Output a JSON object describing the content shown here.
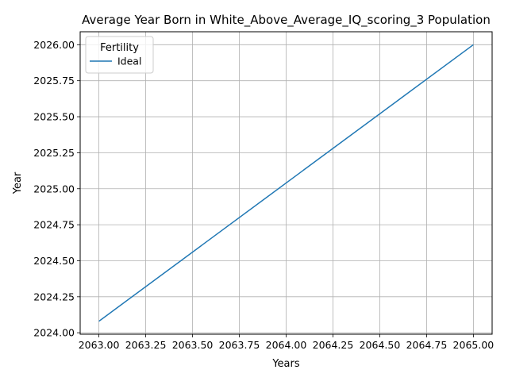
{
  "chart_data": {
    "type": "line",
    "title": "Average Year Born in White_Above_Average_IQ_scoring_3 Population",
    "xlabel": "Years",
    "ylabel": "Year",
    "xlim": [
      2062.9,
      2065.1
    ],
    "ylim": [
      2023.99,
      2026.09
    ],
    "xticks": [
      2063.0,
      2063.25,
      2063.5,
      2063.75,
      2064.0,
      2064.25,
      2064.5,
      2064.75,
      2065.0
    ],
    "xtick_labels": [
      "2063.00",
      "2063.25",
      "2063.50",
      "2063.75",
      "2064.00",
      "2064.25",
      "2064.50",
      "2064.75",
      "2065.00"
    ],
    "yticks": [
      2024.0,
      2024.25,
      2024.5,
      2024.75,
      2025.0,
      2025.25,
      2025.5,
      2025.75,
      2026.0
    ],
    "ytick_labels": [
      "2024.00",
      "2024.25",
      "2024.50",
      "2024.75",
      "2025.00",
      "2025.25",
      "2025.50",
      "2025.75",
      "2026.00"
    ],
    "grid": true,
    "legend": {
      "title": "Fertility",
      "placement": "top-left"
    },
    "series": [
      {
        "name": "Ideal",
        "color": "#1f77b4",
        "x": [
          2063.0,
          2065.0
        ],
        "y": [
          2024.08,
          2026.0
        ]
      }
    ]
  }
}
